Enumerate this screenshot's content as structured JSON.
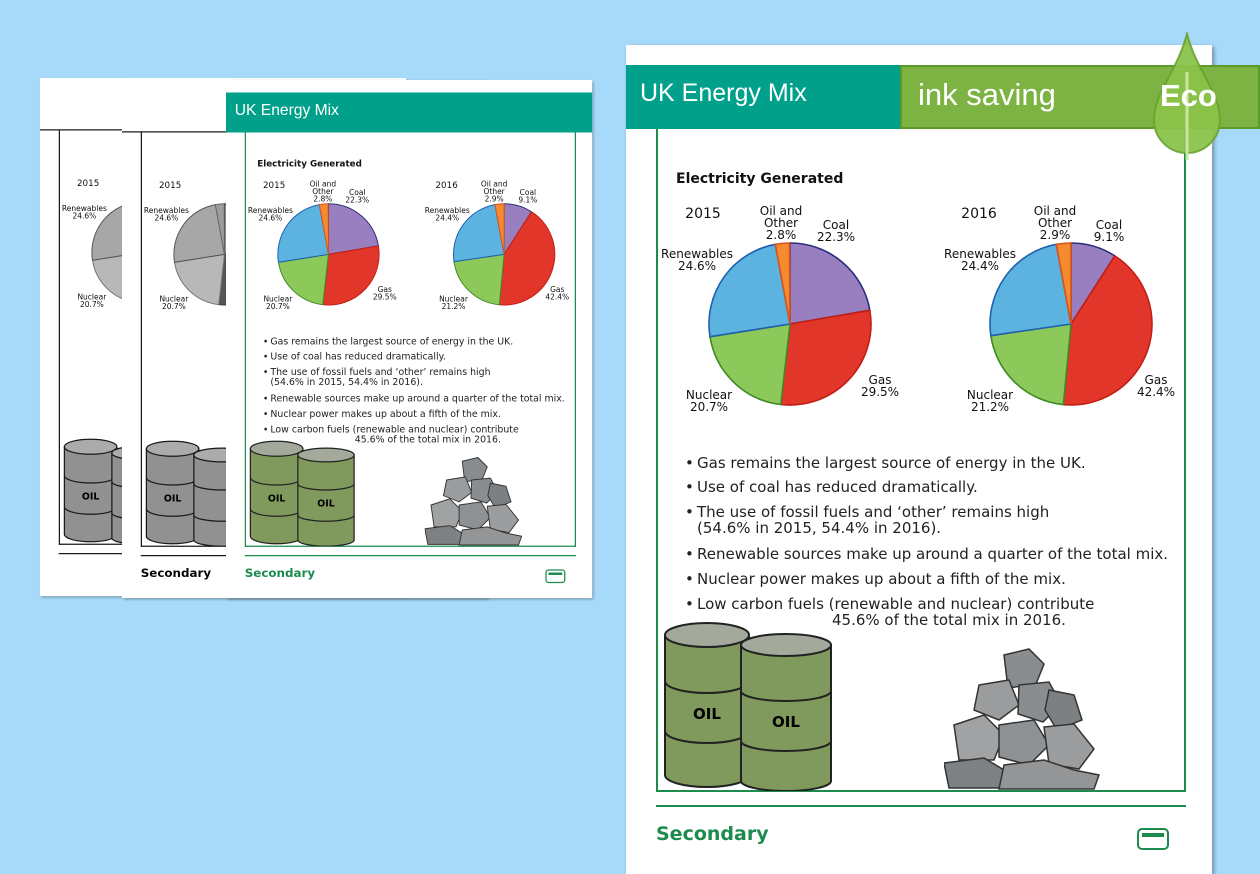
{
  "sheet": {
    "title": "UK Energy Mix",
    "subtitle": "Electricity Generated",
    "footer": "Secondary",
    "bullets": [
      [
        "Gas remains the largest source of energy in the UK."
      ],
      [
        "Use of coal has reduced dramatically."
      ],
      [
        "The use of fossil fuels and ‘other’ remains high",
        "(54.6% in 2015, 54.4% in 2016)."
      ],
      [
        "Renewable sources make up around a quarter of the total mix."
      ],
      [
        "Nuclear power makes up about a fifth of the mix."
      ],
      [
        "Low carbon fuels (renewable and nuclear) contribute",
        "45.6% of the total mix in 2016."
      ]
    ],
    "barrel_label": "OIL"
  },
  "chart_data": [
    {
      "type": "pie",
      "title": "2015",
      "categories": [
        "Coal",
        "Gas",
        "Nuclear",
        "Renewables",
        "Oil and Other"
      ],
      "values": [
        22.3,
        29.5,
        20.7,
        24.6,
        2.8
      ],
      "labels": [
        [
          "Coal",
          "22.3%"
        ],
        [
          "Gas",
          "29.5%"
        ],
        [
          "Nuclear",
          "20.7%"
        ],
        [
          "Renewables",
          "24.6%"
        ],
        [
          "Oil and",
          "Other",
          "2.8%"
        ]
      ]
    },
    {
      "type": "pie",
      "title": "2016",
      "categories": [
        "Coal",
        "Gas",
        "Nuclear",
        "Renewables",
        "Oil and Other"
      ],
      "values": [
        9.1,
        42.4,
        21.2,
        24.4,
        2.9
      ],
      "labels": [
        [
          "Coal",
          "9.1%"
        ],
        [
          "Gas",
          "42.4%"
        ],
        [
          "Nuclear",
          "21.2%"
        ],
        [
          "Renewables",
          "24.4%"
        ],
        [
          "Oil and",
          "Other",
          "2.9%"
        ]
      ]
    }
  ],
  "colors": {
    "Coal": "#9a7fc0",
    "Gas": "#e3362a",
    "Nuclear": "#8cc85a",
    "Renewables": "#5cb3e0",
    "Oil and Other": "#f58a2f",
    "header": "#00a08b",
    "eco": "#7cb342"
  },
  "badge": {
    "text": "ink saving",
    "eco": "Eco"
  }
}
